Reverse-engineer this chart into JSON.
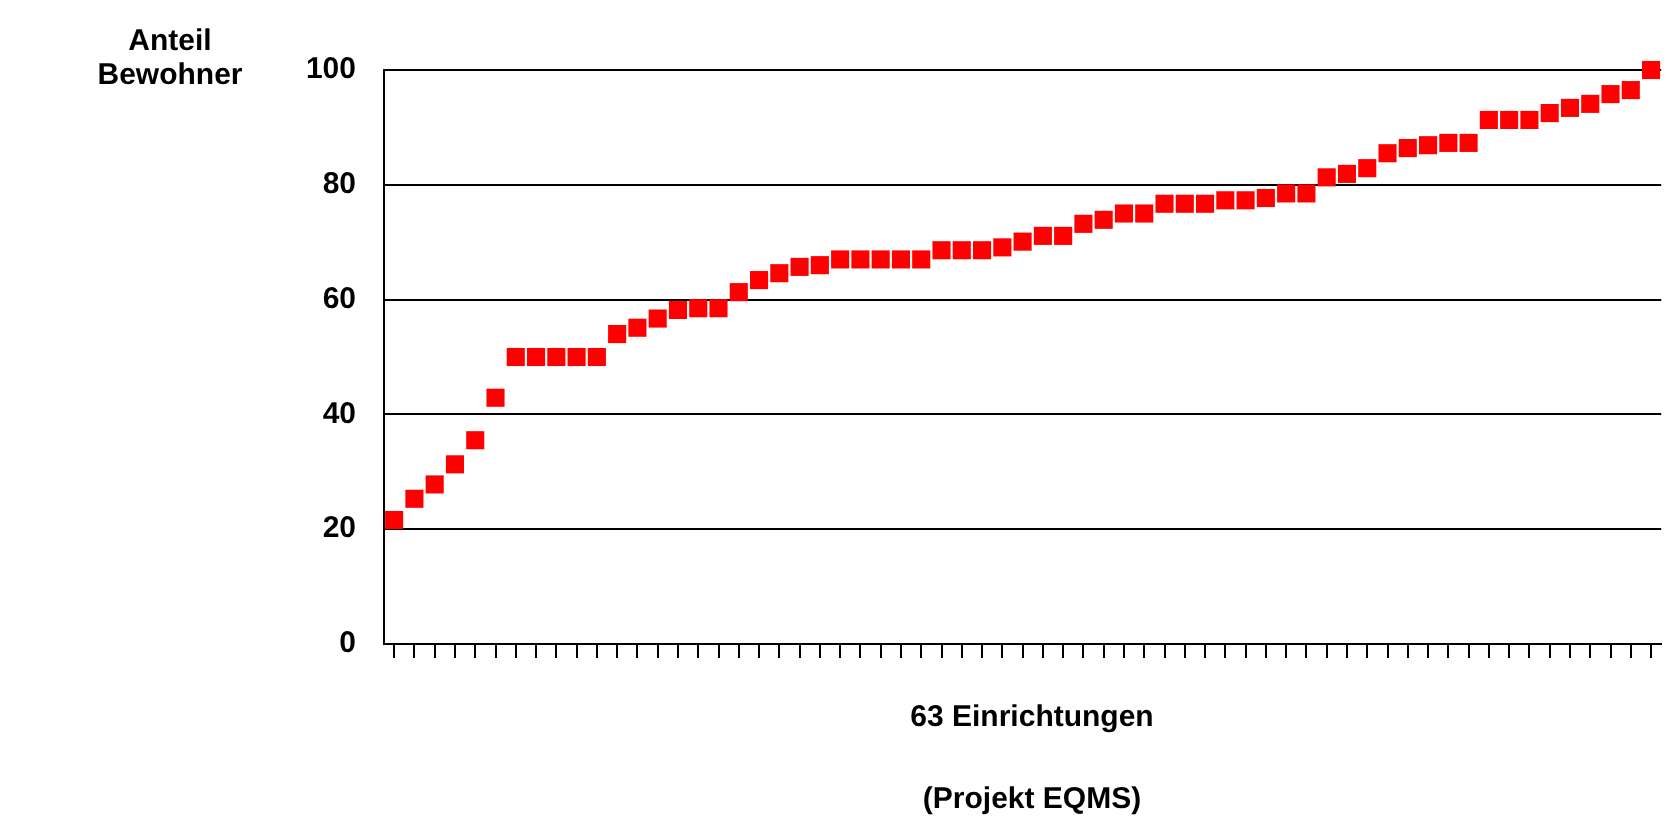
{
  "chart_data": {
    "type": "scatter",
    "xlabel": "63 Einrichtungen",
    "ylabel": "Anteil Bewohner",
    "annotations": [
      "(Projekt EQMS)"
    ],
    "categories": [
      null,
      null,
      null,
      null,
      null,
      null,
      null,
      null,
      null,
      null,
      null,
      null,
      null,
      null,
      null,
      null,
      null,
      null,
      null,
      null,
      null,
      null,
      null,
      null,
      null,
      null,
      null,
      null,
      null,
      null,
      null,
      null,
      null,
      null,
      null,
      null,
      null,
      null,
      null,
      null,
      null,
      null,
      null,
      null,
      null,
      null,
      null,
      null,
      null,
      null,
      null,
      null,
      null,
      null,
      null,
      null,
      null,
      null,
      null,
      null,
      null,
      null,
      null
    ],
    "values": [
      21.6,
      25.3,
      27.8,
      31.3,
      35.5,
      42.9,
      50,
      50,
      50,
      50,
      50,
      54,
      55.1,
      56.7,
      58.2,
      58.5,
      58.5,
      61.3,
      63.4,
      64.6,
      65.7,
      66,
      67,
      67,
      67,
      67,
      67,
      68.6,
      68.6,
      68.6,
      69.1,
      70.1,
      71.1,
      71.1,
      73.2,
      73.9,
      75,
      75,
      76.7,
      76.7,
      76.7,
      77.3,
      77.3,
      77.7,
      78.5,
      78.5,
      81.3,
      81.9,
      82.9,
      85.5,
      86.4,
      86.9,
      87.3,
      87.3,
      91.3,
      91.3,
      91.3,
      92.5,
      93.4,
      94.1,
      95.8,
      96.5,
      100
    ],
    "color": "#ff0000",
    "marker": "square",
    "ylim": [
      0,
      100
    ],
    "yticks": [
      0,
      20,
      40,
      60,
      80,
      100
    ],
    "grid": "y",
    "legend": false,
    "tick_labels": "y"
  }
}
